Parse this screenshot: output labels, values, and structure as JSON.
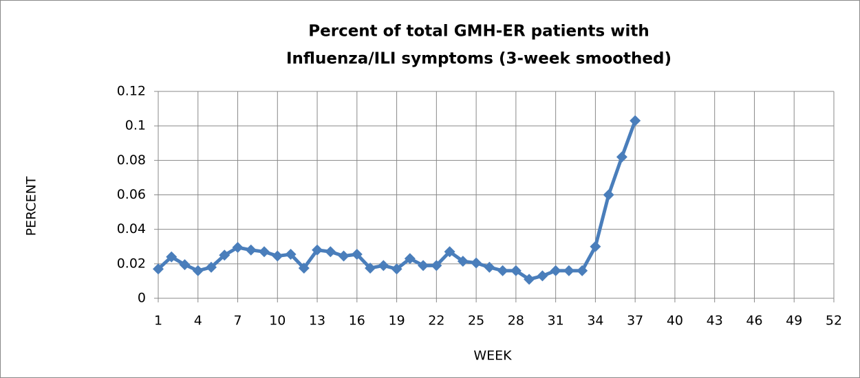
{
  "chart_data": {
    "type": "line",
    "title": [
      "Percent of total GMH-ER patients with",
      "Influenza/ILI symptoms (3-week smoothed)"
    ],
    "x_label": "WEEK",
    "y_label": "PERCENT",
    "x": [
      1,
      2,
      3,
      4,
      5,
      6,
      7,
      8,
      9,
      10,
      11,
      12,
      13,
      14,
      15,
      16,
      17,
      18,
      19,
      20,
      21,
      22,
      23,
      24,
      25,
      26,
      27,
      28,
      29,
      30,
      31,
      32,
      33,
      34,
      35,
      36,
      37
    ],
    "series": [
      {
        "color": "#4a7ebb",
        "values": [
          0.017,
          0.024,
          0.0195,
          0.016,
          0.018,
          0.025,
          0.0295,
          0.028,
          0.027,
          0.0245,
          0.0255,
          0.0175,
          0.028,
          0.027,
          0.0245,
          0.0255,
          0.0175,
          0.019,
          0.017,
          0.023,
          0.019,
          0.019,
          0.027,
          0.0215,
          0.0205,
          0.018,
          0.016,
          0.016,
          0.011,
          0.013,
          0.016,
          0.016,
          0.016,
          0.03,
          0.06,
          0.082,
          0.103
        ]
      }
    ],
    "xlim": [
      1,
      52
    ],
    "xticks": [
      1,
      4,
      7,
      10,
      13,
      16,
      19,
      22,
      25,
      28,
      31,
      34,
      37,
      40,
      43,
      46,
      49,
      52
    ],
    "ylim": [
      0,
      0.12
    ],
    "yticks": [
      0,
      0.02,
      0.04,
      0.06,
      0.08,
      0.1,
      0.12
    ],
    "grid": true
  }
}
